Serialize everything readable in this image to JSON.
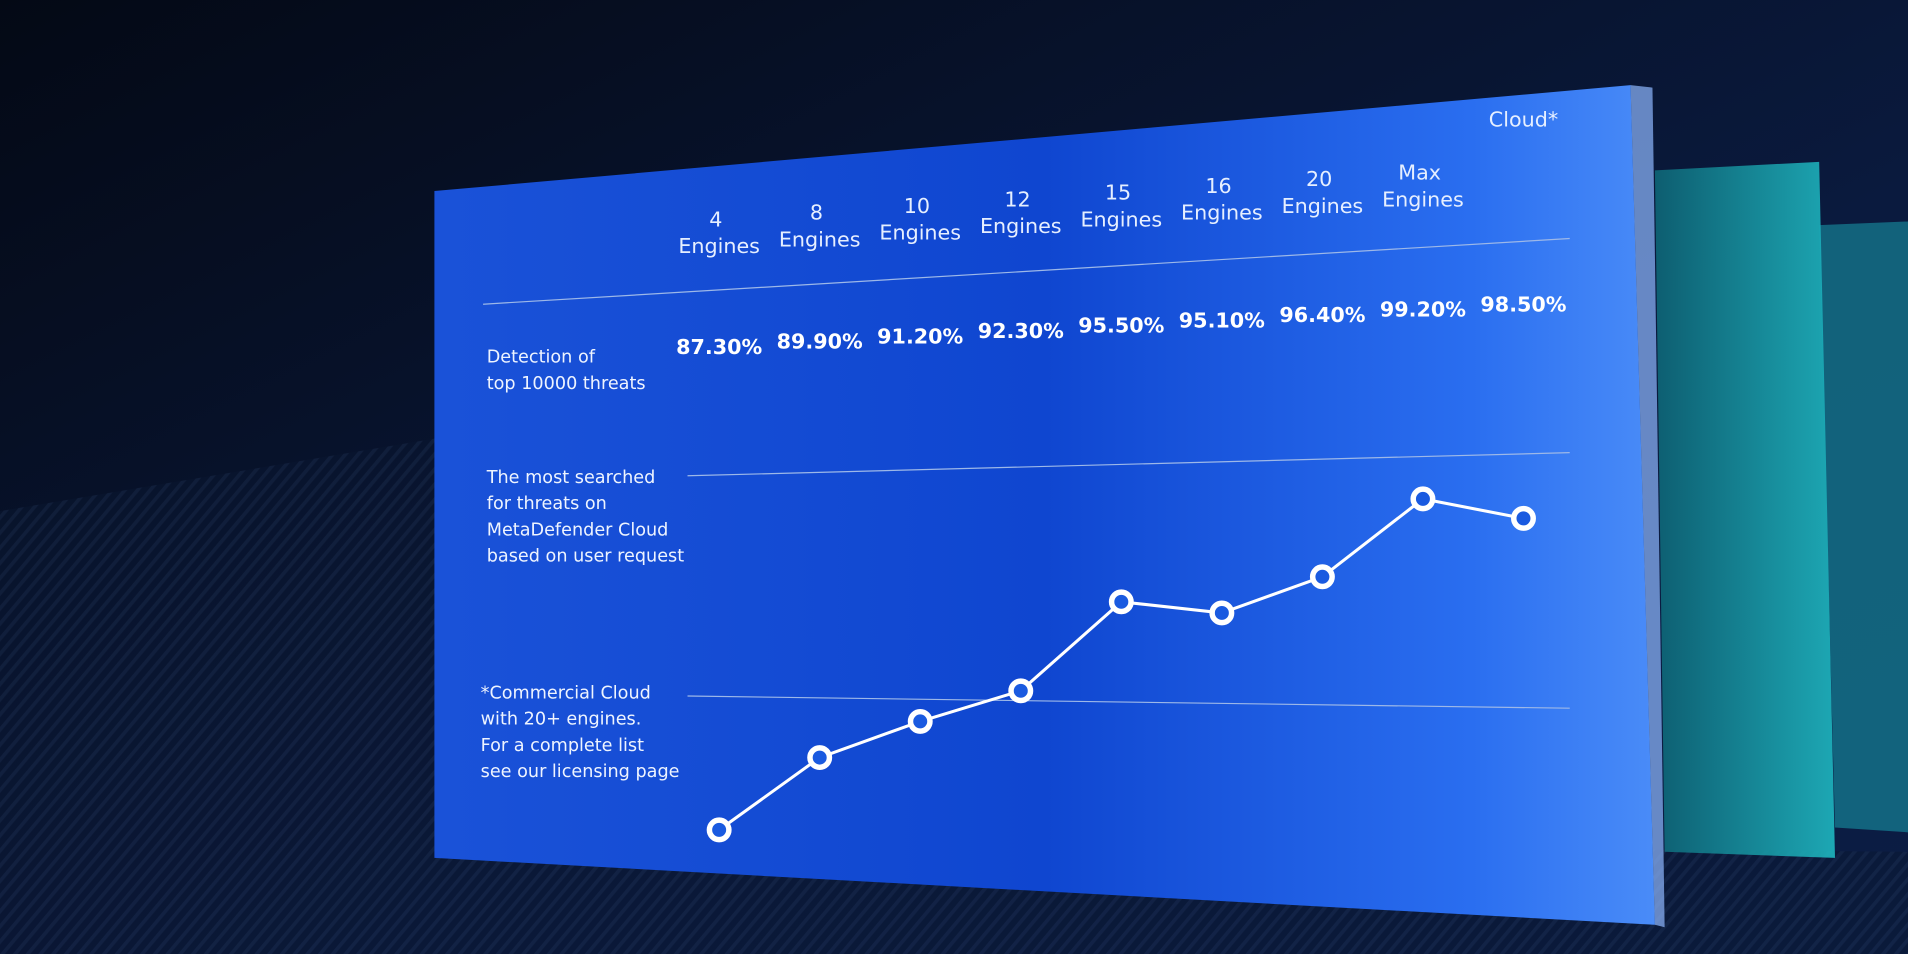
{
  "chart_data": {
    "type": "line",
    "row_label": "Detection of\ntop 10000 threats",
    "annotation": "The most searched\nfor threats on\nMetaDefender Cloud\nbased on user request",
    "footnote": "*Commercial Cloud\nwith 20+ engines.\nFor a complete list\nsee our licensing page",
    "categories": [
      "4\nEngines",
      "8\nEngines",
      "10\nEngines",
      "12\nEngines",
      "15\nEngines",
      "16\nEngines",
      "20\nEngines",
      "Max\nEngines",
      "Cloud*"
    ],
    "values": [
      87.3,
      89.9,
      91.2,
      92.3,
      95.5,
      95.1,
      96.4,
      99.2,
      98.5
    ],
    "value_labels": [
      "87.30%",
      "89.90%",
      "91.20%",
      "92.30%",
      "95.50%",
      "95.10%",
      "96.40%",
      "99.20%",
      "98.50%"
    ],
    "color": "#ffffff"
  }
}
